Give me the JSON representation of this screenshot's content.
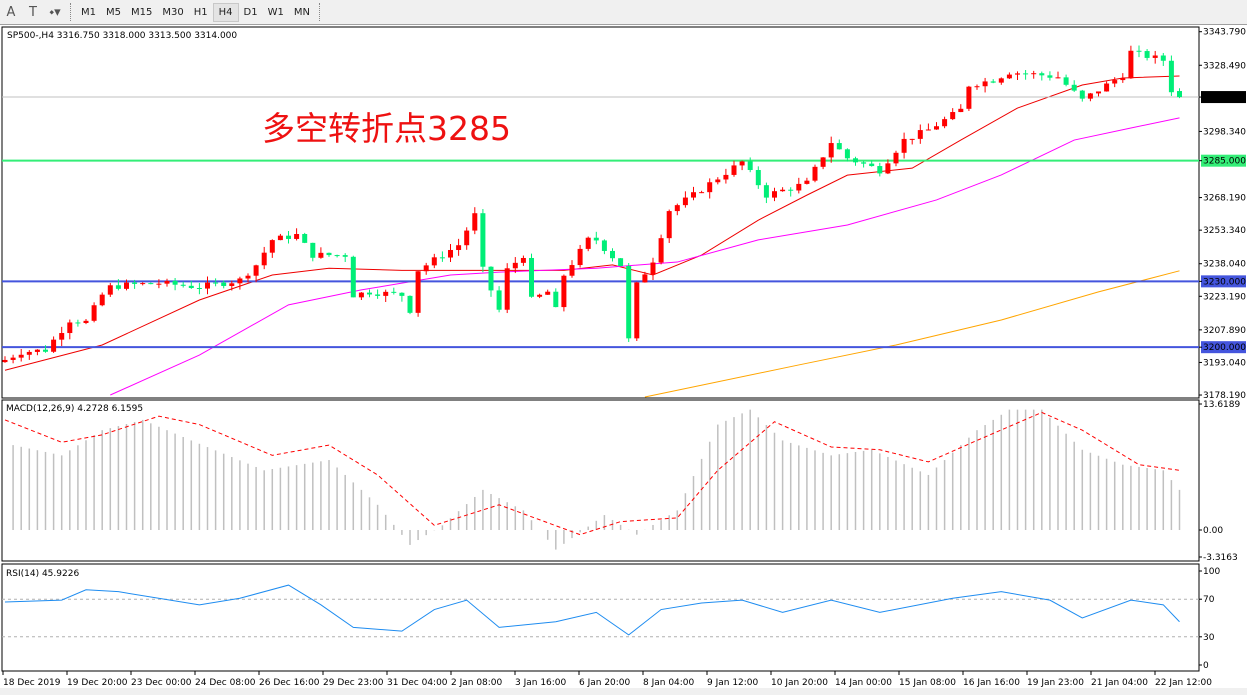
{
  "toolbar": {
    "icons": [
      "text-icon",
      "text-label-icon",
      "arrow-tools-icon"
    ],
    "timeframes": [
      "M1",
      "M5",
      "M15",
      "M30",
      "H1",
      "H4",
      "D1",
      "W1",
      "MN"
    ],
    "active_timeframe": "H4"
  },
  "header": {
    "symbol_line": "SP500-,H4  3316.750 3318.000 3313.500 3314.000"
  },
  "annotation": "多空转折点3285",
  "colors": {
    "bull_candle": "#ff0000",
    "bear_candle": "#00ee77",
    "ma_fast": "#ee0000",
    "ma_mid": "#ff00ff",
    "ma_slow": "#ffa500",
    "level_3285": "#33ee77",
    "level_support": "#4455dd",
    "macd_hist": "#c0c0c0",
    "macd_signal": "#ff0000",
    "rsi": "#1e8cf0"
  },
  "chart_data": [
    {
      "type": "candlestick",
      "symbol": "SP500-",
      "timeframe": "H4",
      "last_bar": {
        "open": 3316.75,
        "high": 3318.0,
        "low": 3313.5,
        "close": 3314.0
      },
      "bar_count": 146,
      "close_waypoints": [
        [
          0,
          3194.2
        ],
        [
          2,
          3197.8
        ],
        [
          5,
          3198.7
        ],
        [
          7,
          3207.8
        ],
        [
          8,
          3212.4
        ],
        [
          10,
          3211.5
        ],
        [
          12,
          3223.8
        ],
        [
          13,
          3227.4
        ],
        [
          15,
          3228.3
        ],
        [
          19,
          3229.2
        ],
        [
          24,
          3227.4
        ],
        [
          29,
          3230.6
        ],
        [
          31,
          3237.5
        ],
        [
          33,
          3248.9
        ],
        [
          36,
          3251.1
        ],
        [
          38,
          3242.0
        ],
        [
          42,
          3242.0
        ],
        [
          43,
          3223.8
        ],
        [
          45,
          3225.2
        ],
        [
          49,
          3223.8
        ],
        [
          50,
          3216.9
        ],
        [
          51,
          3235.2
        ],
        [
          54,
          3242.0
        ],
        [
          56,
          3246.6
        ],
        [
          58,
          3260.2
        ],
        [
          59,
          3235.2
        ],
        [
          61,
          3216.9
        ],
        [
          62,
          3235.2
        ],
        [
          64,
          3242.0
        ],
        [
          65,
          3221.5
        ],
        [
          67,
          3225.2
        ],
        [
          68,
          3216.9
        ],
        [
          69,
          3232.9
        ],
        [
          72,
          3248.9
        ],
        [
          73,
          3248.9
        ],
        [
          76,
          3237.5
        ],
        [
          77,
          3203.3
        ],
        [
          78,
          3228.3
        ],
        [
          80,
          3239.7
        ],
        [
          82,
          3262.5
        ],
        [
          85,
          3269.3
        ],
        [
          88,
          3277.1
        ],
        [
          91,
          3284.4
        ],
        [
          94,
          3269.3
        ],
        [
          97,
          3272.5
        ],
        [
          99,
          3274.8
        ],
        [
          102,
          3293.5
        ],
        [
          104,
          3286.2
        ],
        [
          108,
          3280.7
        ],
        [
          111,
          3294.4
        ],
        [
          114,
          3299.0
        ],
        [
          118,
          3308.1
        ],
        [
          119,
          3319.5
        ],
        [
          122,
          3321.8
        ],
        [
          124,
          3325.4
        ],
        [
          128,
          3324.0
        ],
        [
          130,
          3323.1
        ],
        [
          133,
          3312.6
        ],
        [
          136,
          3319.5
        ],
        [
          138,
          3324.0
        ],
        [
          139,
          3334.5
        ],
        [
          143,
          3330.8
        ],
        [
          144,
          3317.2
        ],
        [
          145,
          3314.0
        ]
      ],
      "ma_fast": [
        [
          0,
          3189.5
        ],
        [
          12,
          3201
        ],
        [
          24,
          3221.5
        ],
        [
          33,
          3232.9
        ],
        [
          40,
          3236
        ],
        [
          49,
          3235
        ],
        [
          57,
          3235
        ],
        [
          69,
          3235
        ],
        [
          75,
          3237.5
        ],
        [
          80,
          3232.9
        ],
        [
          86,
          3242
        ],
        [
          93,
          3257.9
        ],
        [
          99,
          3269.3
        ],
        [
          104,
          3278.4
        ],
        [
          112,
          3281.6
        ],
        [
          118,
          3294.4
        ],
        [
          125,
          3309
        ],
        [
          133,
          3319.5
        ],
        [
          138,
          3322.7
        ],
        [
          145,
          3323.6
        ]
      ],
      "ma_mid": [
        [
          13,
          3178.2
        ],
        [
          24,
          3196.4
        ],
        [
          35,
          3219.3
        ],
        [
          44,
          3226.1
        ],
        [
          55,
          3232.9
        ],
        [
          61,
          3234.2
        ],
        [
          73,
          3236
        ],
        [
          83,
          3238.8
        ],
        [
          93,
          3248.9
        ],
        [
          104,
          3255.7
        ],
        [
          115,
          3267.1
        ],
        [
          123,
          3278.5
        ],
        [
          132,
          3294.4
        ],
        [
          139,
          3299.9
        ],
        [
          145,
          3304.5
        ]
      ],
      "ma_slow": [
        [
          79,
          3177.3
        ],
        [
          98,
          3191.9
        ],
        [
          110,
          3201
        ],
        [
          123,
          3212.4
        ],
        [
          135,
          3225.2
        ],
        [
          145,
          3234.8
        ]
      ],
      "horizontal_levels": [
        3285.0,
        3230.0,
        3200.0
      ],
      "current_price": 3314.0,
      "y_ticks": [
        3343.79,
        3328.49,
        3314.0,
        3298.34,
        3285.0,
        3268.19,
        3253.34,
        3238.04,
        3230.0,
        3223.19,
        3207.89,
        3200.0,
        3193.04,
        3178.19
      ],
      "y_tick_labels": [
        "3343.790",
        "3328.490",
        "3314.000",
        "3298.340",
        "3285.000",
        "3268.190",
        "3253.340",
        "3238.040",
        "3230.000",
        "3223.190",
        "3207.890",
        "3200.000",
        "3193.040",
        "3178.190"
      ],
      "ylim": [
        3176.5,
        3346
      ],
      "x_tick_labels": [
        "18 Dec 2019",
        "19 Dec 20:00",
        "23 Dec 00:00",
        "24 Dec 08:00",
        "26 Dec 16:00",
        "29 Dec 23:00",
        "31 Dec 04:00",
        "2 Jan 08:00",
        "3 Jan 16:00",
        "6 Jan 20:00",
        "8 Jan 04:00",
        "9 Jan 12:00",
        "10 Jan 20:00",
        "14 Jan 00:00",
        "15 Jan 08:00",
        "16 Jan 16:00",
        "19 Jan 23:00",
        "21 Jan 04:00",
        "22 Jan 12:00"
      ]
    },
    {
      "type": "bar+line",
      "title": "MACD(12,26,9) 4.2728 6.1595",
      "histogram_waypoints": [
        [
          1,
          9.1
        ],
        [
          7,
          8.0
        ],
        [
          12,
          10.7
        ],
        [
          17,
          11.8
        ],
        [
          23,
          9.6
        ],
        [
          32,
          6.4
        ],
        [
          40,
          7.5
        ],
        [
          46,
          2.7
        ],
        [
          50,
          -1.6
        ],
        [
          54,
          0.5
        ],
        [
          59,
          4.3
        ],
        [
          64,
          2.1
        ],
        [
          68,
          -2.1
        ],
        [
          74,
          1.6
        ],
        [
          78,
          -0.5
        ],
        [
          83,
          2.1
        ],
        [
          88,
          11.3
        ],
        [
          92,
          12.9
        ],
        [
          96,
          9.6
        ],
        [
          102,
          8.0
        ],
        [
          107,
          8.6
        ],
        [
          114,
          5.9
        ],
        [
          120,
          10.7
        ],
        [
          124,
          12.9
        ],
        [
          128,
          12.9
        ],
        [
          133,
          8.6
        ],
        [
          138,
          7.0
        ],
        [
          143,
          6.4
        ],
        [
          145,
          4.3
        ]
      ],
      "signal_waypoints": [
        [
          0,
          11.8
        ],
        [
          7,
          9.4
        ],
        [
          12,
          10.2
        ],
        [
          19,
          12.2
        ],
        [
          24,
          11.3
        ],
        [
          33,
          8.0
        ],
        [
          40,
          9.1
        ],
        [
          46,
          5.9
        ],
        [
          53,
          0.5
        ],
        [
          57,
          1.6
        ],
        [
          61,
          2.7
        ],
        [
          66,
          1.1
        ],
        [
          71,
          -0.5
        ],
        [
          76,
          0.9
        ],
        [
          83,
          1.3
        ],
        [
          88,
          6.4
        ],
        [
          95,
          11.6
        ],
        [
          102,
          8.9
        ],
        [
          108,
          8.6
        ],
        [
          114,
          7.3
        ],
        [
          120,
          9.6
        ],
        [
          128,
          12.6
        ],
        [
          133,
          10.7
        ],
        [
          140,
          7.0
        ],
        [
          145,
          6.4
        ]
      ],
      "y_tick_labels": [
        "13.6189",
        "0.00",
        "-3.3163"
      ],
      "ylim": [
        -3.3163,
        13.6189
      ]
    },
    {
      "type": "line",
      "title": "RSI(14) 45.9226",
      "values_waypoints": [
        [
          0,
          67
        ],
        [
          7,
          69
        ],
        [
          10,
          80
        ],
        [
          14,
          78
        ],
        [
          24,
          64
        ],
        [
          29,
          71
        ],
        [
          35,
          85
        ],
        [
          39,
          64
        ],
        [
          43,
          40
        ],
        [
          49,
          36
        ],
        [
          53,
          59
        ],
        [
          57,
          69
        ],
        [
          61,
          40
        ],
        [
          68,
          46
        ],
        [
          73,
          56
        ],
        [
          77,
          32
        ],
        [
          81,
          59
        ],
        [
          86,
          66
        ],
        [
          91,
          69
        ],
        [
          96,
          56
        ],
        [
          102,
          69
        ],
        [
          108,
          56
        ],
        [
          117,
          71
        ],
        [
          123,
          78
        ],
        [
          129,
          69
        ],
        [
          133,
          50
        ],
        [
          139,
          69
        ],
        [
          143,
          64
        ],
        [
          145,
          46
        ]
      ],
      "levels": [
        70,
        30
      ],
      "y_tick_labels": [
        "100",
        "70",
        "30",
        "0"
      ],
      "ylim": [
        0,
        100
      ]
    }
  ]
}
